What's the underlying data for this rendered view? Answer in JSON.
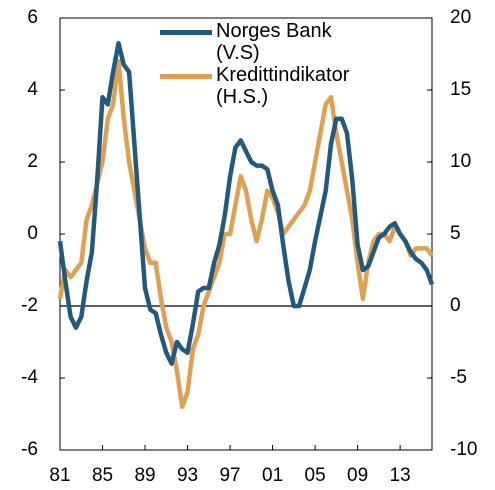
{
  "chart_data": {
    "type": "line",
    "x": [
      1981,
      1981.5,
      1982,
      1982.5,
      1983,
      1983.5,
      1984,
      1984.5,
      1985,
      1985.5,
      1986,
      1986.5,
      1987,
      1987.5,
      1988,
      1988.5,
      1989,
      1989.5,
      1990,
      1990.5,
      1991,
      1991.5,
      1992,
      1992.5,
      1993,
      1993.5,
      1994,
      1994.5,
      1995,
      1995.5,
      1996,
      1996.5,
      1997,
      1997.5,
      1998,
      1998.5,
      1999,
      1999.5,
      2000,
      2000.5,
      2001,
      2001.5,
      2002,
      2002.5,
      2003,
      2003.5,
      2004,
      2004.5,
      2005,
      2005.5,
      2006,
      2006.5,
      2007,
      2007.5,
      2008,
      2008.5,
      2009,
      2009.5,
      2010,
      2010.5,
      2011,
      2011.5,
      2012,
      2012.5,
      2013,
      2013.5,
      2014,
      2014.5,
      2015,
      2015.5,
      2016
    ],
    "series": [
      {
        "name": "Norges Bank\n(V.S)",
        "color": "#215a7e",
        "axis": "y",
        "values": [
          -0.2,
          -1.3,
          -2.3,
          -2.6,
          -2.3,
          -1.3,
          -0.5,
          1.5,
          3.8,
          3.6,
          4.5,
          5.3,
          4.7,
          4.5,
          2.5,
          0.5,
          -1.5,
          -2.1,
          -2.2,
          -2.8,
          -3.3,
          -3.6,
          -3.0,
          -3.2,
          -3.3,
          -2.5,
          -1.6,
          -1.5,
          -1.5,
          -0.8,
          -0.3,
          0.5,
          1.6,
          2.4,
          2.6,
          2.3,
          2.0,
          1.9,
          1.9,
          1.8,
          1.2,
          0.8,
          -0.3,
          -1.3,
          -2.0,
          -2.0,
          -1.5,
          -1.0,
          -0.2,
          0.5,
          1.2,
          2.5,
          3.2,
          3.2,
          2.8,
          1.5,
          -0.3,
          -1.0,
          -0.9,
          -0.5,
          -0.1,
          0.0,
          0.2,
          0.3,
          0.0,
          -0.2,
          -0.5,
          -0.7,
          -0.8,
          -1.0,
          -1.4
        ]
      },
      {
        "name": "Kredittindikator\n(H.S.)",
        "color": "#e0a050",
        "axis": "y2",
        "values": [
          0.5,
          2.5,
          2,
          2.5,
          3,
          6,
          7,
          8.5,
          10,
          13,
          14,
          17,
          13,
          10,
          8,
          6,
          4,
          3,
          3,
          0.5,
          -1.5,
          -2.5,
          -4.5,
          -7,
          -6,
          -3,
          -2,
          0,
          1,
          2,
          3,
          5,
          5,
          7,
          9,
          8,
          6,
          4.5,
          6,
          8,
          7.5,
          6.5,
          5,
          5.5,
          6,
          6.5,
          7,
          8,
          10,
          12,
          14,
          14.5,
          12,
          10,
          8,
          6,
          3,
          0.5,
          3,
          4.5,
          5,
          5,
          4.5,
          5.5,
          5,
          4.5,
          3.5,
          4,
          4,
          4,
          3.5
        ]
      }
    ],
    "xlim": [
      1981,
      2016
    ],
    "xticks": [
      {
        "value": 1981,
        "label": "81"
      },
      {
        "value": 1985,
        "label": "85"
      },
      {
        "value": 1989,
        "label": "89"
      },
      {
        "value": 1993,
        "label": "93"
      },
      {
        "value": 1997,
        "label": "97"
      },
      {
        "value": 2001,
        "label": "01"
      },
      {
        "value": 2005,
        "label": "05"
      },
      {
        "value": 2009,
        "label": "09"
      },
      {
        "value": 2013,
        "label": "13"
      }
    ],
    "ylim": [
      -6,
      6
    ],
    "yticks": [
      -6,
      -4,
      -2,
      0,
      2,
      4,
      6
    ],
    "y2lim": [
      -10,
      20
    ],
    "y2ticks": [
      -10,
      -5,
      0,
      5,
      10,
      15,
      20
    ],
    "legend": "top"
  }
}
